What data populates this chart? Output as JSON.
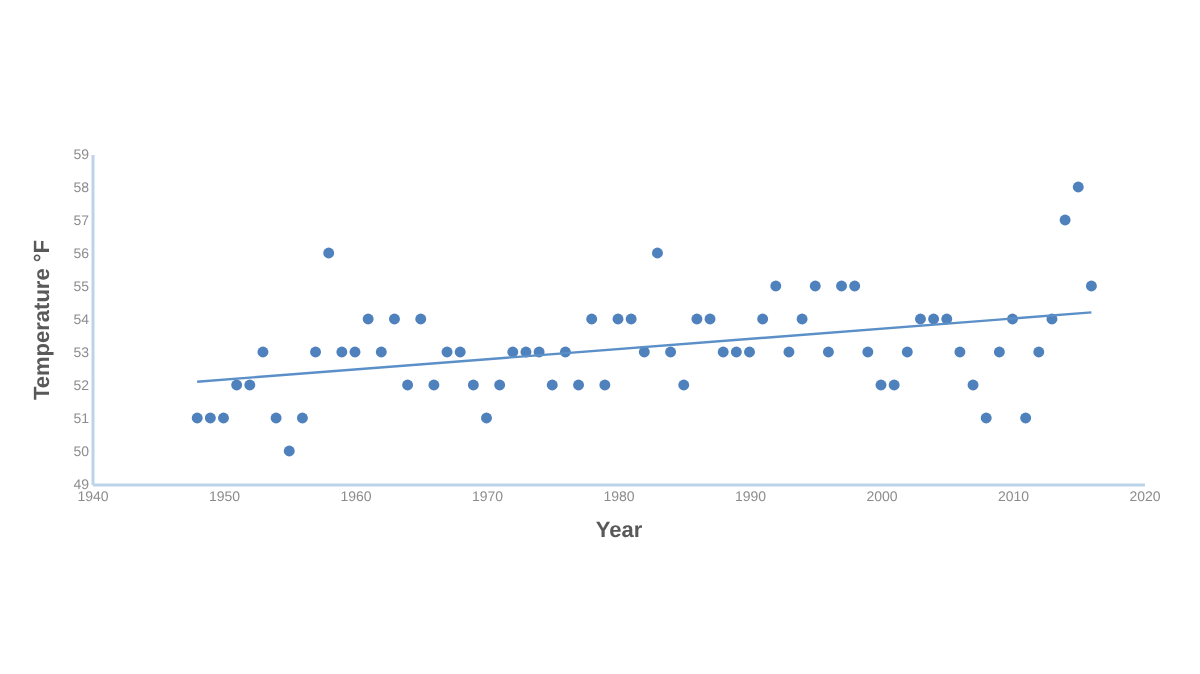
{
  "chart_data": {
    "type": "scatter",
    "xlabel": "Year",
    "ylabel": "Temperature °F",
    "xlim": [
      1940,
      2020
    ],
    "xticks": [
      1940,
      1950,
      1960,
      1970,
      1980,
      1990,
      2000,
      2010,
      2020
    ],
    "ylim": [
      49,
      59
    ],
    "yticks": [
      49,
      50,
      51,
      52,
      53,
      54,
      55,
      56,
      57,
      58,
      59
    ],
    "grid": false,
    "series": [
      {
        "marker": "circle",
        "color": "#4f81bd",
        "x": [
          1948,
          1949,
          1950,
          1951,
          1952,
          1953,
          1954,
          1955,
          1956,
          1957,
          1958,
          1959,
          1960,
          1961,
          1962,
          1963,
          1964,
          1965,
          1966,
          1967,
          1968,
          1969,
          1970,
          1971,
          1972,
          1973,
          1974,
          1975,
          1976,
          1977,
          1978,
          1979,
          1980,
          1981,
          1982,
          1983,
          1984,
          1985,
          1986,
          1987,
          1988,
          1989,
          1990,
          1991,
          1992,
          1993,
          1994,
          1995,
          1996,
          1997,
          1998,
          1999,
          2000,
          2001,
          2002,
          2003,
          2004,
          2005,
          2006,
          2007,
          2008,
          2009,
          2010,
          2011,
          2012,
          2013,
          2014,
          2015,
          2016
        ],
        "values": [
          51,
          51,
          51,
          52,
          52,
          53,
          51,
          50,
          51,
          53,
          56,
          53,
          53,
          54,
          53,
          54,
          52,
          54,
          52,
          53,
          53,
          52,
          51,
          52,
          53,
          53,
          53,
          52,
          53,
          52,
          54,
          52,
          54,
          54,
          53,
          56,
          53,
          52,
          54,
          54,
          53,
          53,
          53,
          54,
          55,
          53,
          54,
          55,
          53,
          55,
          55,
          53,
          52,
          52,
          53,
          54,
          54,
          54,
          53,
          52,
          51,
          53,
          54,
          51,
          53,
          54,
          57,
          58,
          55
        ]
      },
      {
        "type": "line",
        "marker": "none",
        "color": "#5b8fc7",
        "x": [
          1948,
          2016
        ],
        "values": [
          52.1,
          54.2
        ]
      }
    ]
  }
}
